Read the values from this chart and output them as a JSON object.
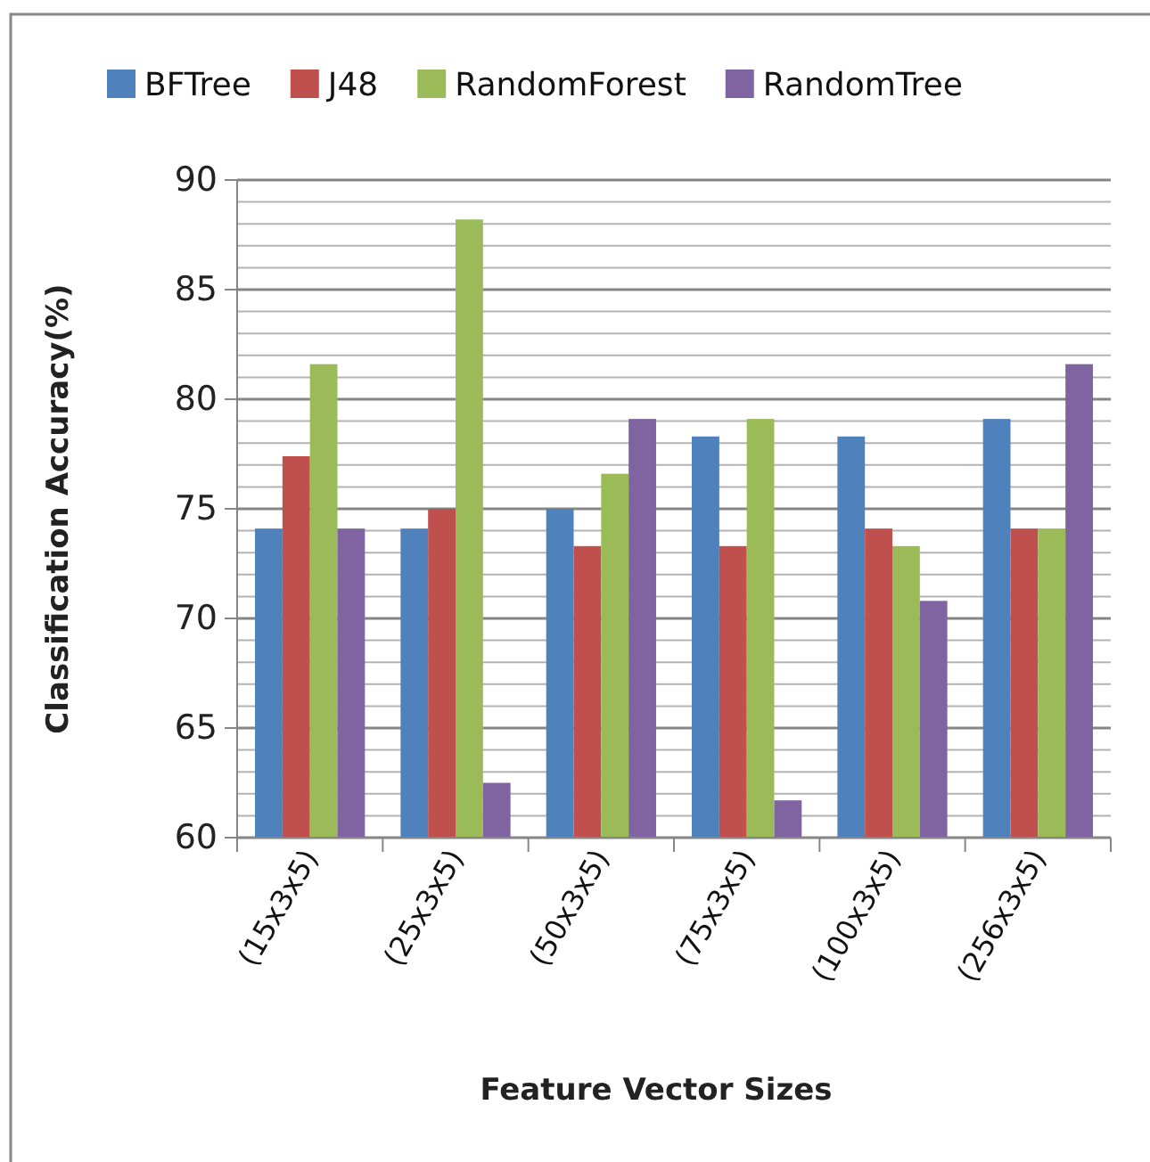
{
  "chart_data": {
    "type": "bar",
    "xlabel": "Feature Vector Sizes",
    "ylabel": "Classification Accuracy(%)",
    "categories": [
      "(15x3x5)",
      "(25x3x5)",
      "(50x3x5)",
      "(75x3x5)",
      "(100x3x5)",
      "(256x3x5)"
    ],
    "series": [
      {
        "name": "BFTree",
        "color": "#4f81bd",
        "values": [
          74.1,
          74.1,
          75.0,
          78.3,
          78.3,
          79.1
        ]
      },
      {
        "name": "J48",
        "color": "#c0504d",
        "values": [
          77.4,
          75.0,
          73.3,
          73.3,
          74.1,
          74.1
        ]
      },
      {
        "name": "RandomForest",
        "color": "#9bbb59",
        "values": [
          81.6,
          88.2,
          76.6,
          79.1,
          73.3,
          74.1
        ]
      },
      {
        "name": "RandomTree",
        "color": "#8064a2",
        "values": [
          74.1,
          62.5,
          79.1,
          61.7,
          70.8,
          81.6
        ]
      }
    ],
    "ylim": [
      60,
      90
    ],
    "yticks": [
      60,
      {
        "value": 61,
        "label": null
      },
      {
        "value": 62,
        "label": null
      },
      {
        "value": 63,
        "label": null
      },
      {
        "value": 64,
        "label": null
      },
      65,
      {
        "value": 66,
        "label": null
      },
      {
        "value": 67,
        "label": null
      },
      {
        "value": 68,
        "label": null
      },
      {
        "value": 69,
        "label": null
      },
      70,
      {
        "value": 71,
        "label": null
      },
      {
        "value": 72,
        "label": null
      },
      {
        "value": 73,
        "label": null
      },
      {
        "value": 74,
        "label": null
      },
      75,
      {
        "value": 76,
        "label": null
      },
      {
        "value": 77,
        "label": null
      },
      {
        "value": 78,
        "label": null
      },
      {
        "value": 79,
        "label": null
      },
      80,
      {
        "value": 81,
        "label": null
      },
      {
        "value": 82,
        "label": null
      },
      {
        "value": 83,
        "label": null
      },
      {
        "value": 84,
        "label": null
      },
      85,
      {
        "value": 86,
        "label": null
      },
      {
        "value": 87,
        "label": null
      },
      {
        "value": 88,
        "label": null
      },
      {
        "value": 89,
        "label": null
      },
      90
    ],
    "grid": "y",
    "legend": "top"
  }
}
